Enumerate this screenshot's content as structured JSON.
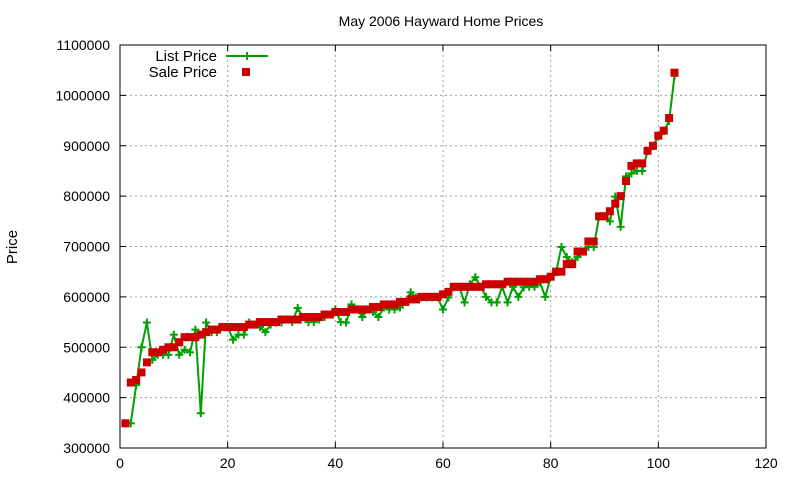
{
  "chart_data": {
    "type": "line",
    "title": "May 2006 Hayward Home Prices",
    "xlabel": "",
    "ylabel": "Price",
    "xlim": [
      0,
      120
    ],
    "ylim": [
      300000,
      1100000
    ],
    "xticks": [
      0,
      20,
      40,
      60,
      80,
      100,
      120
    ],
    "yticks": [
      300000,
      400000,
      500000,
      600000,
      700000,
      800000,
      900000,
      1000000,
      1100000
    ],
    "grid": true,
    "legend_position": "top-left",
    "series": [
      {
        "name": "List Price",
        "style": "line+cross",
        "color": "#00a000",
        "x": [
          1,
          2,
          3,
          4,
          5,
          6,
          7,
          8,
          9,
          10,
          11,
          12,
          13,
          14,
          15,
          16,
          17,
          18,
          19,
          20,
          21,
          22,
          23,
          24,
          25,
          26,
          27,
          28,
          29,
          30,
          31,
          32,
          33,
          34,
          35,
          36,
          37,
          38,
          39,
          40,
          41,
          42,
          43,
          44,
          45,
          46,
          47,
          48,
          49,
          50,
          51,
          52,
          53,
          54,
          55,
          56,
          57,
          58,
          59,
          60,
          61,
          62,
          63,
          64,
          65,
          66,
          67,
          68,
          69,
          70,
          71,
          72,
          73,
          74,
          75,
          76,
          77,
          78,
          79,
          80,
          81,
          82,
          83,
          84,
          85,
          86,
          87,
          88,
          89,
          90,
          91,
          92,
          93,
          94,
          95,
          96,
          97,
          98,
          99,
          100,
          101,
          102,
          103
        ],
        "y": [
          349000,
          349000,
          425000,
          500000,
          549000,
          475000,
          485000,
          485000,
          485000,
          525000,
          485000,
          495000,
          490000,
          535000,
          369000,
          549000,
          530000,
          530000,
          540000,
          540000,
          515000,
          525000,
          525000,
          549000,
          545000,
          540000,
          530000,
          545000,
          549000,
          549000,
          555000,
          550000,
          578000,
          560000,
          550000,
          550000,
          555000,
          560000,
          565000,
          575000,
          550000,
          549000,
          585000,
          575000,
          560000,
          575000,
          570000,
          560000,
          579000,
          575000,
          575000,
          579000,
          590000,
          609000,
          599000,
          599000,
          599000,
          599000,
          599000,
          575000,
          599000,
          619000,
          620000,
          589000,
          625000,
          639000,
          620000,
          600000,
          589000,
          589000,
          620000,
          589000,
          620000,
          600000,
          619000,
          620000,
          620000,
          629000,
          600000,
          640000,
          649000,
          699000,
          679000,
          669000,
          679000,
          690000,
          699000,
          699000,
          759000,
          760000,
          750000,
          799000,
          739000,
          839000,
          845000,
          850000,
          850000,
          889000,
          899000,
          919000,
          929000,
          949000,
          1039000
        ]
      },
      {
        "name": "Sale Price",
        "style": "square",
        "color": "#cc0000",
        "x": [
          1,
          2,
          3,
          4,
          5,
          6,
          7,
          8,
          9,
          10,
          11,
          12,
          13,
          14,
          15,
          16,
          17,
          18,
          19,
          20,
          21,
          22,
          23,
          24,
          25,
          26,
          27,
          28,
          29,
          30,
          31,
          32,
          33,
          34,
          35,
          36,
          37,
          38,
          39,
          40,
          41,
          42,
          43,
          44,
          45,
          46,
          47,
          48,
          49,
          50,
          51,
          52,
          53,
          54,
          55,
          56,
          57,
          58,
          59,
          60,
          61,
          62,
          63,
          64,
          65,
          66,
          67,
          68,
          69,
          70,
          71,
          72,
          73,
          74,
          75,
          76,
          77,
          78,
          79,
          80,
          81,
          82,
          83,
          84,
          85,
          86,
          87,
          88,
          89,
          90,
          91,
          92,
          93,
          94,
          95,
          96,
          97,
          98,
          99,
          100,
          101,
          102,
          103
        ],
        "y": [
          349000,
          430000,
          435000,
          450000,
          470000,
          490000,
          490000,
          495000,
          500000,
          500000,
          510000,
          520000,
          520000,
          520000,
          525000,
          530000,
          535000,
          535000,
          540000,
          540000,
          540000,
          540000,
          540000,
          545000,
          545000,
          550000,
          550000,
          550000,
          550000,
          555000,
          555000,
          555000,
          555000,
          560000,
          560000,
          560000,
          560000,
          565000,
          565000,
          570000,
          570000,
          570000,
          575000,
          575000,
          575000,
          575000,
          580000,
          580000,
          585000,
          585000,
          585000,
          590000,
          590000,
          595000,
          595000,
          600000,
          600000,
          600000,
          600000,
          605000,
          610000,
          620000,
          620000,
          620000,
          620000,
          620000,
          620000,
          625000,
          625000,
          625000,
          625000,
          630000,
          630000,
          630000,
          630000,
          630000,
          630000,
          635000,
          635000,
          640000,
          650000,
          650000,
          665000,
          665000,
          690000,
          690000,
          710000,
          710000,
          760000,
          760000,
          770000,
          785000,
          800000,
          830000,
          860000,
          865000,
          865000,
          890000,
          900000,
          920000,
          930000,
          955000,
          1045000
        ]
      }
    ]
  }
}
